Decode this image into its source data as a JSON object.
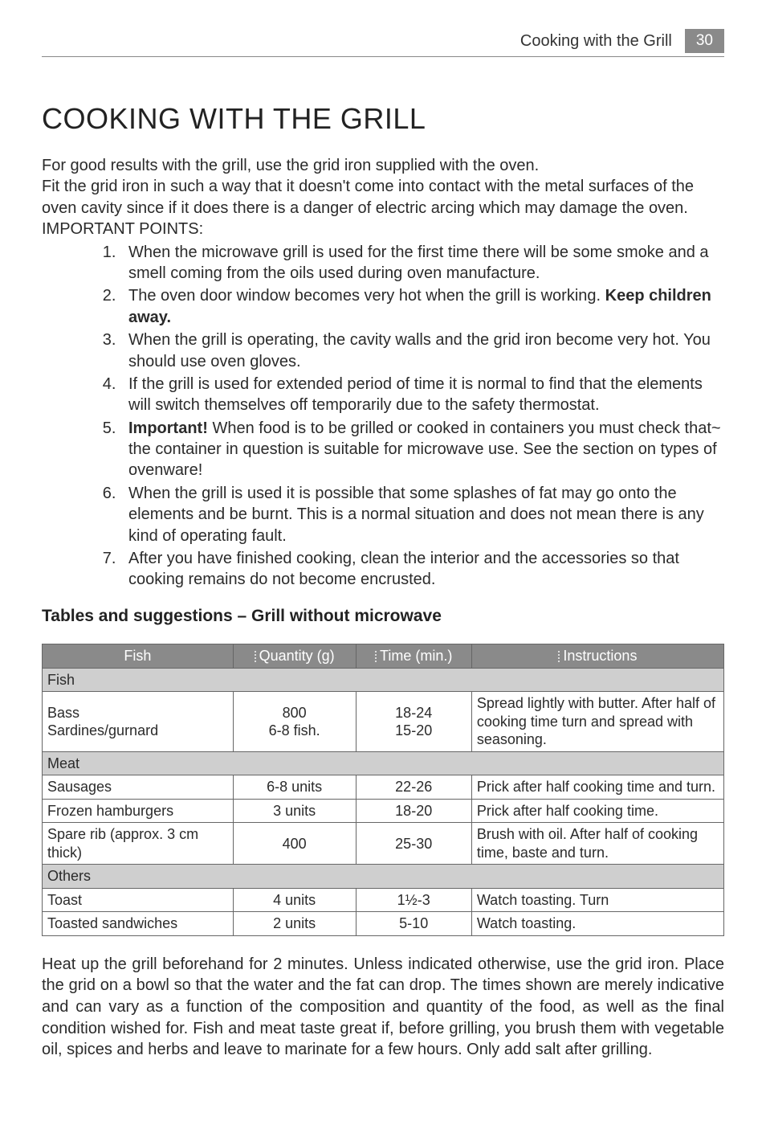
{
  "header": {
    "running_title": "Cooking with the Grill",
    "page_number": "30"
  },
  "title": "COOKING WITH THE GRILL",
  "intro_lines": [
    "For good results with the grill, use the grid iron supplied with the oven.",
    "Fit the grid iron in such a way that it doesn't come into contact with the metal surfaces of the oven cavity since if it does there is a danger of electric arcing which may damage the oven."
  ],
  "important_label": "IMPORTANT POINTS:",
  "points": [
    {
      "pre": "When the microwave grill is used for the first time there will be some smoke and a smell coming from the oils used during oven manufacture."
    },
    {
      "pre": "The oven door window becomes very hot when the grill is working. ",
      "bold": "Keep children away."
    },
    {
      "pre": "When the grill is operating, the cavity walls and the grid iron become very hot. You should use oven gloves."
    },
    {
      "pre": "If the grill is used for extended period of time it is normal to find that the elements will switch themselves off temporarily due to the safety thermostat."
    },
    {
      "bold": "Important!",
      "post": " When food is to be grilled or cooked in containers you must check that~ the container in question is suitable for microwave use. See the section on types of ovenware!"
    },
    {
      "pre": "When the grill is used it is possible that some splashes of fat may go onto the elements and be burnt. This is a normal situation and does not mean there is any kind of operating fault."
    },
    {
      "pre": "After you have finished cooking, clean the interior and the accessories so that cooking remains do not become encrusted."
    }
  ],
  "subhead": "Tables and suggestions – Grill without microwave",
  "table": {
    "headers": [
      "Fish",
      "Quantity (g)",
      "Time (min.)",
      "Instructions"
    ],
    "sections": [
      {
        "label": "Fish",
        "rows": [
          {
            "item": "Bass\nSardines/gurnard",
            "qty": "800\n6-8 fish.",
            "time": "18-24\n15-20",
            "inst": "Spread lightly with butter. After half of cooking time turn and spread with seasoning."
          }
        ]
      },
      {
        "label": "Meat",
        "rows": [
          {
            "item": "Sausages",
            "qty": "6-8 units",
            "time": "22-26",
            "inst": "Prick after half cooking time and turn."
          },
          {
            "item": "Frozen hamburgers",
            "qty": "3 units",
            "time": "18-20",
            "inst": "Prick after half cooking time."
          },
          {
            "item": "Spare rib (approx. 3 cm thick)",
            "qty": "400",
            "time": "25-30",
            "inst": "Brush with oil. After half of cooking time, baste and turn."
          }
        ]
      },
      {
        "label": "Others",
        "rows": [
          {
            "item": "Toast",
            "qty": "4 units",
            "time": "1½-3",
            "inst": "Watch toasting. Turn"
          },
          {
            "item": "Toasted sandwiches",
            "qty": "2 units",
            "time": "5-10",
            "inst": "Watch toasting."
          }
        ]
      }
    ]
  },
  "footnote": "Heat up the grill beforehand for 2 minutes. Unless indicated otherwise, use the grid iron. Place the grid on a bowl so that the water and the fat can drop. The times shown are merely indicative and can vary as a function of the composition and quantity of the food, as well as the final condition wished for. Fish and meat taste great if, before grilling, you brush them with vegetable oil, spices and herbs and leave to marinate for a few hours. Only add salt after grilling."
}
